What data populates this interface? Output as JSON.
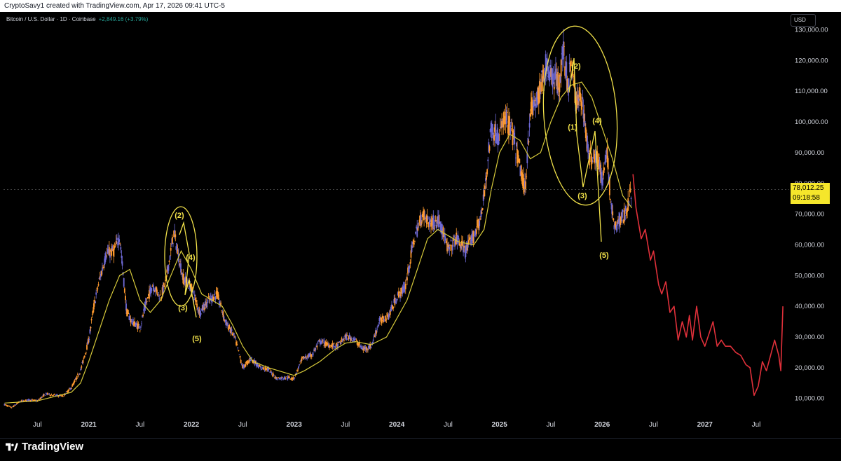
{
  "header": {
    "attribution": "CryptoSavy1 created with TradingView.com, Apr 17, 2026 09:41 UTC-5"
  },
  "legend": {
    "symbol": "Bitcoin / U.S. Dollar · 1D · Coinbase",
    "change": "+2,849.16 (+3.79%)"
  },
  "currency_button": "USD",
  "last_price": {
    "value": "78,012.25",
    "countdown": "09:18:58"
  },
  "footer": {
    "brand": "TradingView"
  },
  "colors": {
    "background": "#000000",
    "candle_up": "#6f6ad6",
    "candle_down": "#ff9a2e",
    "moving_average": "#d6c93a",
    "projection": "#e0303a",
    "annotation": "#f2e24a",
    "price_label_bg": "#f5e62b"
  },
  "chart_data": {
    "type": "line",
    "title": "Bitcoin / U.S. Dollar · 1D · Coinbase",
    "xlabel": "",
    "ylabel": "",
    "ylim": [
      4000,
      134000
    ],
    "y_scale": "linear",
    "y_ticks": [
      10000,
      20000,
      30000,
      40000,
      50000,
      60000,
      70000,
      80000,
      90000,
      100000,
      110000,
      120000,
      130000
    ],
    "y_tick_labels": [
      "10,000.00",
      "20,000.00",
      "30,000.00",
      "40,000.00",
      "50,000.00",
      "60,000.00",
      "70,000.00",
      "80,000.00",
      "90,000.00",
      "100,000.00",
      "110,000.00",
      "120,000.00",
      "130,000.00"
    ],
    "x_ticks": [
      {
        "t": 2020.5,
        "label": "Jul"
      },
      {
        "t": 2021.0,
        "label": "2021"
      },
      {
        "t": 2021.5,
        "label": "Jul"
      },
      {
        "t": 2022.0,
        "label": "2022"
      },
      {
        "t": 2022.5,
        "label": "Jul"
      },
      {
        "t": 2023.0,
        "label": "2023"
      },
      {
        "t": 2023.5,
        "label": "Jul"
      },
      {
        "t": 2024.0,
        "label": "2024"
      },
      {
        "t": 2024.5,
        "label": "Jul"
      },
      {
        "t": 2025.0,
        "label": "2025"
      },
      {
        "t": 2025.5,
        "label": "Jul"
      },
      {
        "t": 2026.0,
        "label": "2026"
      },
      {
        "t": 2026.5,
        "label": "Jul"
      },
      {
        "t": 2027.0,
        "label": "2027"
      },
      {
        "t": 2027.5,
        "label": "Jul"
      }
    ],
    "xlim": [
      2020.17,
      2027.78
    ],
    "grid": false,
    "series": [
      {
        "key": "price",
        "x": [
          2020.18,
          2020.25,
          2020.33,
          2020.42,
          2020.5,
          2020.58,
          2020.67,
          2020.75,
          2020.83,
          2020.92,
          2021.0,
          2021.05,
          2021.1,
          2021.17,
          2021.25,
          2021.3,
          2021.37,
          2021.42,
          2021.5,
          2021.55,
          2021.62,
          2021.7,
          2021.75,
          2021.83,
          2021.87,
          2021.92,
          2022.0,
          2022.08,
          2022.17,
          2022.25,
          2022.33,
          2022.42,
          2022.5,
          2022.58,
          2022.67,
          2022.75,
          2022.83,
          2022.92,
          2023.0,
          2023.08,
          2023.17,
          2023.25,
          2023.33,
          2023.42,
          2023.5,
          2023.58,
          2023.67,
          2023.75,
          2023.83,
          2023.92,
          2024.0,
          2024.08,
          2024.17,
          2024.25,
          2024.33,
          2024.42,
          2024.5,
          2024.58,
          2024.67,
          2024.75,
          2024.83,
          2024.92,
          2025.0,
          2025.05,
          2025.12,
          2025.2,
          2025.25,
          2025.3,
          2025.37,
          2025.45,
          2025.5,
          2025.58,
          2025.62,
          2025.67,
          2025.7,
          2025.75,
          2025.79,
          2025.83,
          2025.87,
          2025.92,
          2025.97,
          2026.0,
          2026.05,
          2026.08,
          2026.12,
          2026.17,
          2026.22,
          2026.29
        ],
        "y": [
          8000,
          7000,
          9000,
          9500,
          9200,
          11500,
          11000,
          10800,
          13500,
          19000,
          29000,
          40000,
          48000,
          57000,
          58000,
          63000,
          38000,
          35000,
          33000,
          40000,
          47000,
          43000,
          48000,
          64000,
          57000,
          49000,
          46000,
          38000,
          42000,
          44000,
          35000,
          30000,
          20000,
          23000,
          20000,
          19500,
          16500,
          16800,
          16500,
          23000,
          24000,
          28500,
          27500,
          27000,
          30000,
          29500,
          26000,
          27000,
          35000,
          37000,
          43000,
          46000,
          62000,
          70000,
          67000,
          68000,
          58000,
          62000,
          58000,
          63000,
          70000,
          98000,
          95000,
          102000,
          97000,
          85000,
          78000,
          104000,
          107000,
          118000,
          116000,
          112000,
          123000,
          112000,
          120000,
          105000,
          110000,
          101000,
          88000,
          90000,
          87000,
          80000,
          90000,
          75000,
          65000,
          68000,
          70000,
          78000
        ]
      },
      {
        "key": "ma",
        "x": [
          2020.18,
          2020.5,
          2020.83,
          2020.92,
          2021.0,
          2021.1,
          2021.2,
          2021.3,
          2021.4,
          2021.5,
          2021.6,
          2021.7,
          2021.8,
          2021.9,
          2022.0,
          2022.1,
          2022.2,
          2022.3,
          2022.4,
          2022.5,
          2022.6,
          2022.75,
          2022.9,
          2023.0,
          2023.1,
          2023.25,
          2023.4,
          2023.5,
          2023.6,
          2023.75,
          2023.9,
          2024.0,
          2024.1,
          2024.2,
          2024.3,
          2024.4,
          2024.5,
          2024.6,
          2024.75,
          2024.85,
          2024.92,
          2025.0,
          2025.1,
          2025.2,
          2025.3,
          2025.4,
          2025.5,
          2025.6,
          2025.7,
          2025.8,
          2025.9,
          2026.0,
          2026.1,
          2026.2,
          2026.29
        ],
        "y": [
          8500,
          9200,
          12000,
          15000,
          22000,
          32000,
          42000,
          50000,
          52000,
          42000,
          38000,
          42000,
          50000,
          58000,
          52000,
          44000,
          42000,
          40000,
          34000,
          27000,
          22000,
          20000,
          18500,
          17500,
          19000,
          22000,
          26000,
          28000,
          28500,
          27500,
          30000,
          36000,
          42000,
          52000,
          62000,
          65000,
          63000,
          61000,
          60000,
          65000,
          78000,
          90000,
          96000,
          94000,
          88000,
          90000,
          100000,
          108000,
          112000,
          113000,
          108000,
          98000,
          88000,
          76000,
          72000
        ]
      },
      {
        "key": "projection",
        "x": [
          2026.3,
          2026.33,
          2026.38,
          2026.42,
          2026.47,
          2026.5,
          2026.55,
          2026.58,
          2026.62,
          2026.66,
          2026.7,
          2026.74,
          2026.78,
          2026.82,
          2026.85,
          2026.88,
          2026.92,
          2026.96,
          2027.0,
          2027.04,
          2027.08,
          2027.12,
          2027.16,
          2027.2,
          2027.25,
          2027.3,
          2027.35,
          2027.4,
          2027.44,
          2027.48,
          2027.52,
          2027.56,
          2027.6,
          2027.64,
          2027.68,
          2027.72,
          2027.74,
          2027.76
        ],
        "y": [
          83000,
          72000,
          62000,
          65000,
          55000,
          58000,
          47000,
          44000,
          48000,
          38000,
          40000,
          29000,
          35000,
          30000,
          37000,
          29000,
          40000,
          30000,
          27000,
          31000,
          35000,
          27000,
          29000,
          27000,
          27000,
          25000,
          24000,
          21000,
          20000,
          11000,
          14000,
          22000,
          19000,
          24000,
          29000,
          24000,
          19000,
          40000
        ]
      }
    ]
  },
  "annotations": {
    "wave_labels_2021": [
      "(2)",
      "(4)",
      "(3)",
      "(5)"
    ],
    "wave_labels_2025": [
      "(2)",
      "(1)",
      "(4)",
      "(3)",
      "(5)"
    ]
  }
}
